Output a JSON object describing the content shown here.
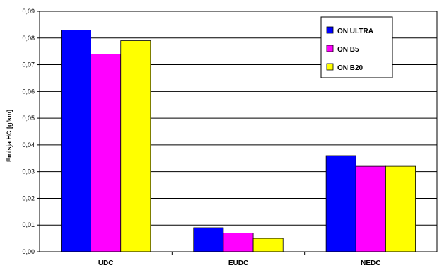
{
  "chart_data": {
    "type": "bar",
    "categories": [
      "UDC",
      "EUDC",
      "NEDC"
    ],
    "series": [
      {
        "name": "ON ULTRA",
        "color": "#0000ff",
        "values": [
          0.083,
          0.009,
          0.036
        ]
      },
      {
        "name": "ON B5",
        "color": "#ff00ff",
        "values": [
          0.074,
          0.007,
          0.032
        ]
      },
      {
        "name": "ON B20",
        "color": "#ffff00",
        "values": [
          0.079,
          0.005,
          0.032
        ]
      }
    ],
    "title": "",
    "xlabel": "",
    "ylabel": "Emisja HC [g/km]",
    "ylim": [
      0,
      0.09
    ],
    "yticks": [
      0,
      0.01,
      0.02,
      0.03,
      0.04,
      0.05,
      0.06,
      0.07,
      0.08,
      0.09
    ],
    "ytick_labels": [
      "0,00",
      "0,01",
      "0,02",
      "0,03",
      "0,04",
      "0,05",
      "0,06",
      "0,07",
      "0,08",
      "0,09"
    ],
    "grid": "horizontal",
    "legend_position": "top-right"
  }
}
